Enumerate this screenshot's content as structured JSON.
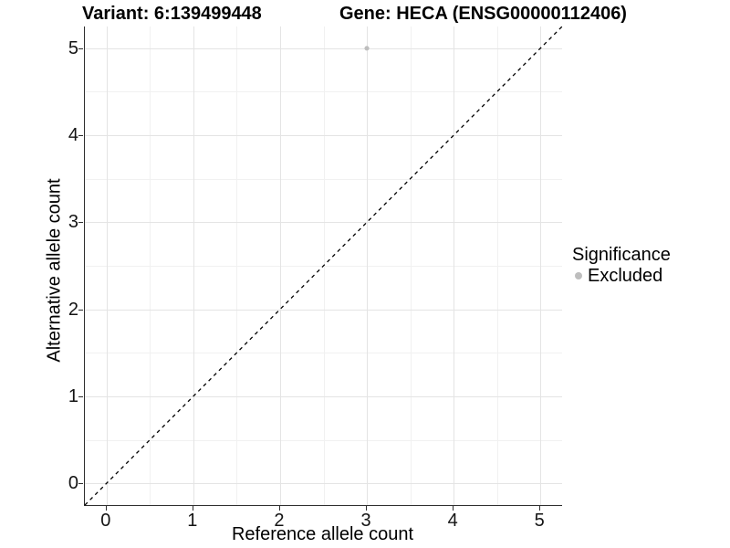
{
  "header": {
    "variant_title": "Variant: 6:139499448",
    "gene_title": "Gene: HECA (ENSG00000112406)"
  },
  "axes": {
    "x_label": "Reference allele count",
    "y_label": "Alternative allele count"
  },
  "legend": {
    "title": "Significance",
    "items": [
      {
        "label": "Excluded",
        "color": "#bebebe"
      }
    ]
  },
  "colors": {
    "background": "#ffffff",
    "axis_line": "#2e2e2e",
    "grid_major": "#e4e4e4",
    "grid_minor": "#f1f1f1",
    "point_excluded": "#bebebe",
    "identity_line": "#000000",
    "text": "#000000"
  },
  "chart_data": {
    "type": "scatter",
    "title": "Variant: 6:139499448    Gene: HECA (ENSG00000112406)",
    "xlabel": "Reference allele count",
    "ylabel": "Alternative allele count",
    "xlim": [
      -0.25,
      5.25
    ],
    "ylim": [
      -0.25,
      5.25
    ],
    "x_ticks": [
      0,
      1,
      2,
      3,
      4,
      5
    ],
    "y_ticks": [
      0,
      1,
      2,
      3,
      4,
      5
    ],
    "grid": {
      "major": true,
      "minor": true
    },
    "legend": {
      "title": "Significance",
      "position": "right",
      "entries": [
        "Excluded"
      ]
    },
    "series": [
      {
        "name": "Excluded",
        "color": "#bebebe",
        "points": [
          {
            "x": 3,
            "y": 5
          }
        ]
      }
    ],
    "annotations": [
      {
        "type": "line",
        "style": "dashed",
        "label": "identity y=x",
        "x1": -0.25,
        "y1": -0.25,
        "x2": 5.25,
        "y2": 5.25,
        "color": "#000000"
      }
    ]
  }
}
